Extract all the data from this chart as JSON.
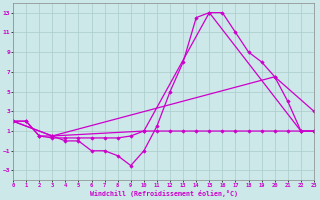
{
  "background_color": "#cce8e8",
  "grid_color": "#aacccc",
  "line_color": "#cc00cc",
  "marker": "D",
  "marker_size": 1.8,
  "line_width": 0.9,
  "xlabel": "Windchill (Refroidissement éolien,°C)",
  "xlim": [
    0,
    23
  ],
  "ylim": [
    -4,
    14
  ],
  "xticks": [
    0,
    1,
    2,
    3,
    4,
    5,
    6,
    7,
    8,
    9,
    10,
    11,
    12,
    13,
    14,
    15,
    16,
    17,
    18,
    19,
    20,
    21,
    22,
    23
  ],
  "yticks": [
    -3,
    -1,
    1,
    3,
    5,
    7,
    9,
    11,
    13
  ],
  "lines": [
    {
      "x": [
        0,
        1,
        2,
        3,
        4,
        5,
        6,
        7,
        8,
        9,
        10,
        11,
        12,
        13,
        14,
        15,
        16,
        17,
        18,
        19,
        20,
        21,
        22,
        23
      ],
      "y": [
        2,
        2,
        0.5,
        0.5,
        0,
        0,
        -1,
        -1,
        -1.5,
        -2.5,
        -1,
        1.5,
        5,
        8,
        12.5,
        13,
        13,
        11,
        9,
        8,
        6.5,
        4,
        1,
        1
      ]
    },
    {
      "x": [
        0,
        1,
        2,
        3,
        4,
        5,
        6,
        7,
        8,
        9,
        10,
        11,
        12,
        13,
        14,
        15,
        16,
        17,
        18,
        19,
        20,
        21,
        22,
        23
      ],
      "y": [
        2,
        2,
        0.5,
        0.3,
        0.3,
        0.3,
        0.3,
        0.3,
        0.3,
        0.5,
        1,
        1,
        1,
        1,
        1,
        1,
        1,
        1,
        1,
        1,
        1,
        1,
        1,
        1
      ]
    },
    {
      "x": [
        0,
        3,
        10,
        15,
        22,
        23
      ],
      "y": [
        2,
        0.5,
        1,
        13,
        1,
        1
      ]
    },
    {
      "x": [
        0,
        3,
        20,
        23
      ],
      "y": [
        2,
        0.5,
        6.5,
        3
      ]
    }
  ]
}
